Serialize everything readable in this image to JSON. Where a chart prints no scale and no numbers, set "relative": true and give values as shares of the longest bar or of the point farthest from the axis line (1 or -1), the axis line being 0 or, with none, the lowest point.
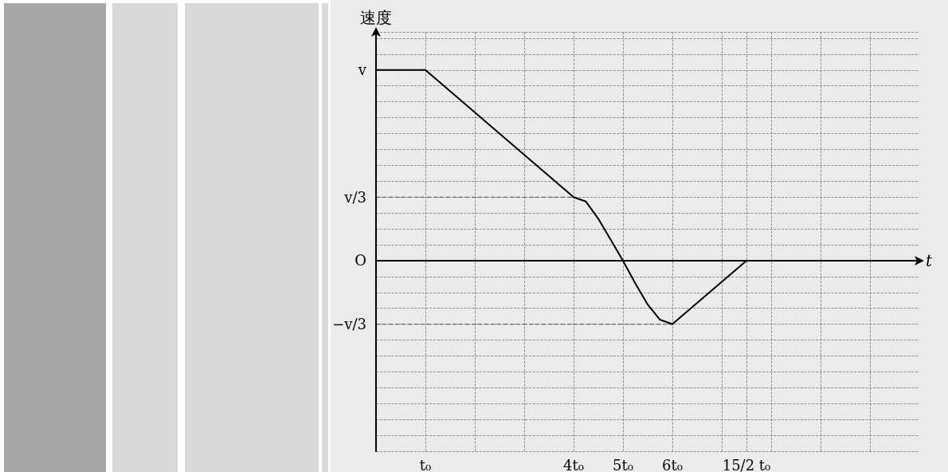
{
  "chart_data": {
    "type": "line",
    "xlabel": "t",
    "ylabel": "速度",
    "relative": true,
    "x": [
      0,
      1,
      4,
      4.25,
      4.5,
      4.75,
      5,
      5.25,
      5.5,
      5.75,
      6,
      7.5
    ],
    "series": [
      {
        "color": "#000000",
        "values": [
          1,
          1,
          0.333,
          0.31,
          0.22,
          0.11,
          0,
          -0.12,
          -0.23,
          -0.31,
          -0.333,
          0
        ]
      }
    ],
    "xlim": [
      0,
      11
    ],
    "xticks": [
      {
        "value": 0,
        "label": null
      },
      {
        "value": 1,
        "label": "t₀"
      },
      {
        "value": 2,
        "label": null
      },
      {
        "value": 3,
        "label": null
      },
      {
        "value": 4,
        "label": "4t₀"
      },
      {
        "value": 5,
        "label": "5t₀"
      },
      {
        "value": 6,
        "label": "6t₀"
      },
      {
        "value": 7,
        "label": null
      },
      {
        "value": 7.5,
        "label": "15/2 t₀"
      },
      {
        "value": 8,
        "label": null
      },
      {
        "value": 9,
        "label": null
      },
      {
        "value": 10,
        "label": null
      }
    ],
    "annotations": [
      {
        "text": "v",
        "x": 0,
        "y": 1
      },
      {
        "text": "v/3",
        "x": 4,
        "y": 0.333
      },
      "O",
      {
        "text": "−v/3",
        "x": 6,
        "y": -0.333
      }
    ],
    "grid": true,
    "marker": "none",
    "line_style": "solid"
  }
}
